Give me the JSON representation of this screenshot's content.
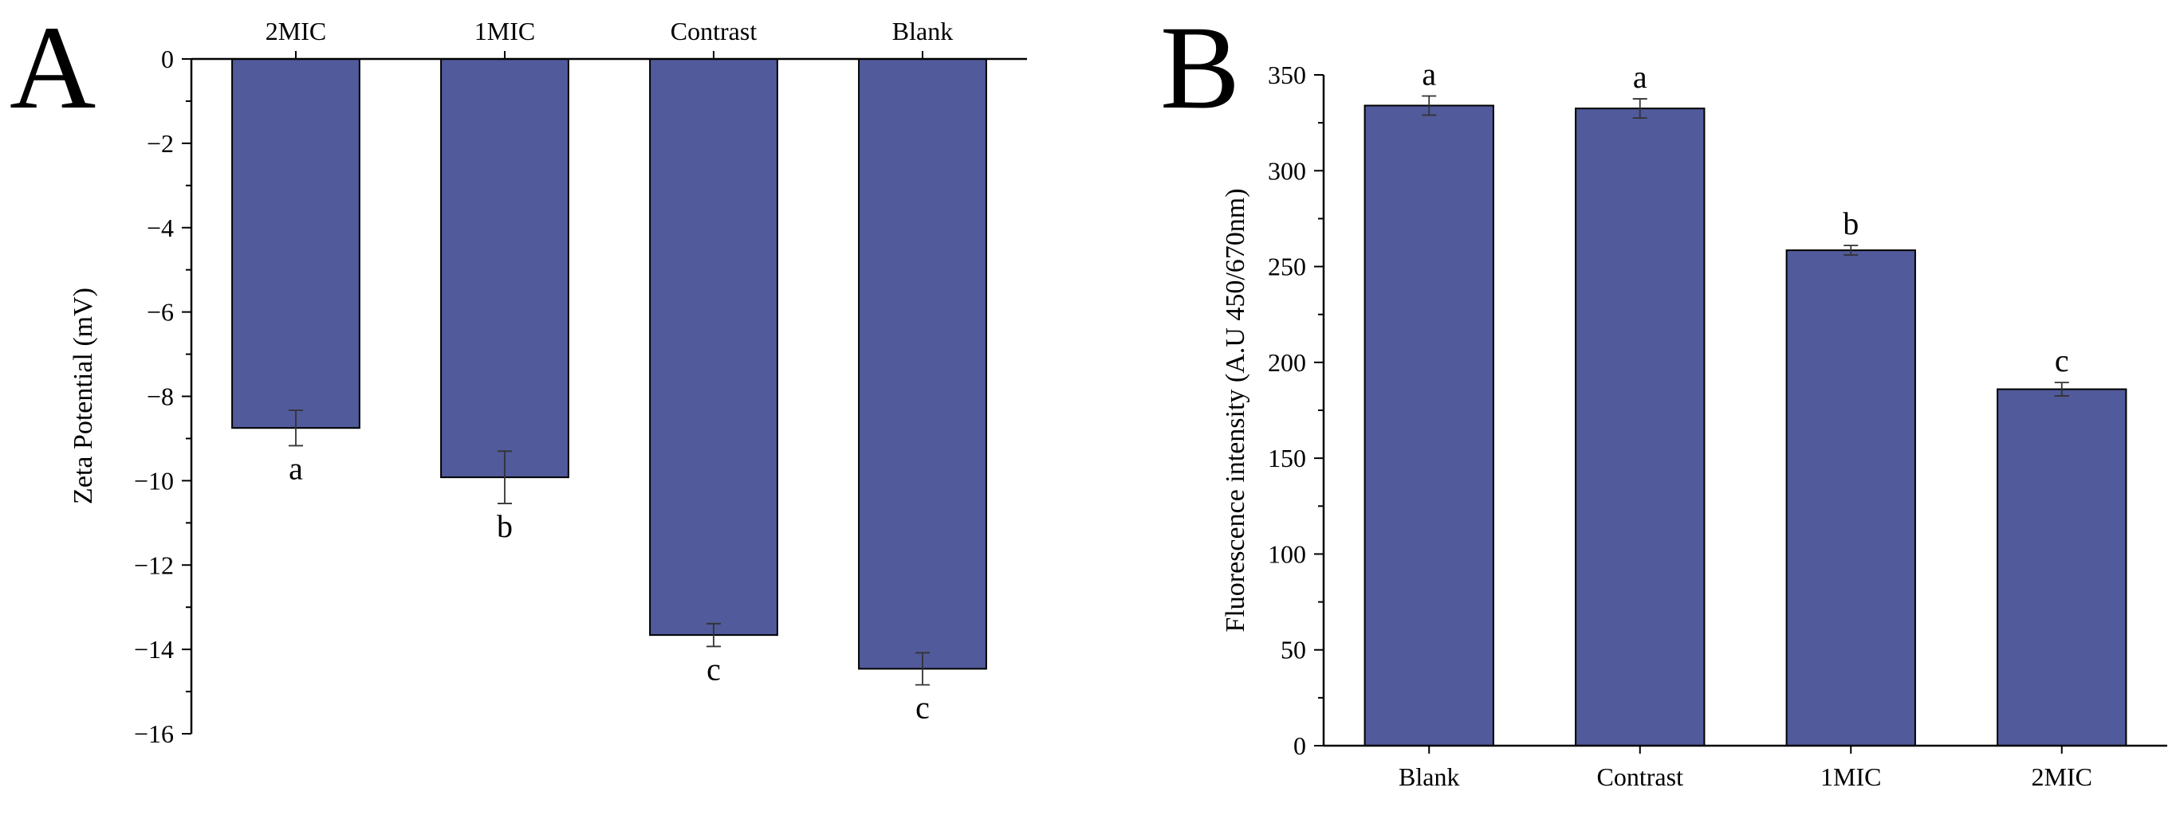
{
  "chart_data": [
    {
      "panel": "A",
      "type": "bar",
      "categories": [
        "2MIC",
        "1MIC",
        "Contrast",
        "Blank"
      ],
      "values": [
        -8.75,
        -9.92,
        -13.66,
        -14.46
      ],
      "errors": [
        0.42,
        0.62,
        0.27,
        0.38
      ],
      "significance": [
        "a",
        "b",
        "c",
        "c"
      ],
      "xlabel": "",
      "ylabel": "Zeta Potential (mV)",
      "ylim": [
        -16,
        0
      ],
      "yticks": [
        0,
        -2,
        -4,
        -6,
        -8,
        -10,
        -12,
        -14,
        -16
      ],
      "ytick_labels": [
        "0",
        "−2",
        "−4",
        "−6",
        "−8",
        "−10",
        "−12",
        "−14",
        "−16"
      ],
      "category_axis_position": "top",
      "bar_color": "#515A9A",
      "grid": false
    },
    {
      "panel": "B",
      "type": "bar",
      "categories": [
        "Blank",
        "Contrast",
        "1MIC",
        "2MIC"
      ],
      "values": [
        334,
        332.5,
        258.5,
        186
      ],
      "errors": [
        5,
        5,
        2.5,
        3.5
      ],
      "significance": [
        "a",
        "a",
        "b",
        "c"
      ],
      "xlabel": "",
      "ylabel": "Fluorescence intensity (A.U 450/670nm)",
      "ylim": [
        0,
        350
      ],
      "yticks": [
        0,
        50,
        100,
        150,
        200,
        250,
        300,
        350
      ],
      "ytick_labels": [
        "0",
        "50",
        "100",
        "150",
        "200",
        "250",
        "300",
        "350"
      ],
      "category_axis_position": "bottom",
      "bar_color": "#515A9A",
      "grid": false
    }
  ]
}
